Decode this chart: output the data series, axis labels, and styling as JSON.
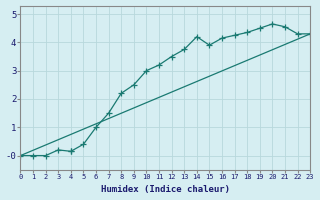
{
  "xlabel": "Humidex (Indice chaleur)",
  "background_color": "#d6eef2",
  "line_color": "#1a7a72",
  "grid_color": "#b8d8dc",
  "xlim": [
    0,
    23
  ],
  "ylim": [
    -0.5,
    5.3
  ],
  "yticks": [
    0,
    1,
    2,
    3,
    4,
    5
  ],
  "ytick_labels": [
    "-0",
    "1",
    "2",
    "3",
    "4",
    "5"
  ],
  "xticks": [
    0,
    1,
    2,
    3,
    4,
    5,
    6,
    7,
    8,
    9,
    10,
    11,
    12,
    13,
    14,
    15,
    16,
    17,
    18,
    19,
    20,
    21,
    22,
    23
  ],
  "curve_x": [
    0,
    1,
    2,
    3,
    4,
    4,
    5,
    6,
    7,
    8,
    9,
    10,
    11,
    12,
    13,
    14,
    15,
    16,
    17,
    18,
    19,
    20,
    21,
    22,
    23
  ],
  "curve_y": [
    0,
    0,
    0,
    0.2,
    0.15,
    0.15,
    0.4,
    1.0,
    1.5,
    2.2,
    2.5,
    3.0,
    3.2,
    3.5,
    3.75,
    4.2,
    3.9,
    4.15,
    4.25,
    4.35,
    4.5,
    4.65,
    4.55,
    4.3,
    4.3
  ],
  "line_x": [
    0,
    23
  ],
  "line_y": [
    0,
    4.3
  ]
}
